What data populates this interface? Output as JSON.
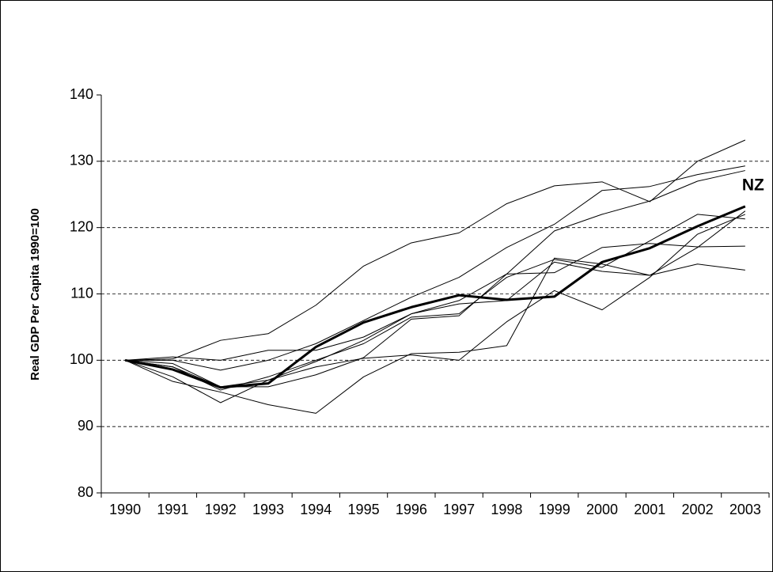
{
  "chart_data": {
    "type": "line",
    "y_label": "Real GDP Per Capita 1990=100",
    "categories": [
      "1990",
      "1991",
      "1992",
      "1993",
      "1994",
      "1995",
      "1996",
      "1997",
      "1998",
      "1999",
      "2000",
      "2001",
      "2002",
      "2003"
    ],
    "ylim": [
      80,
      140
    ],
    "yticks": [
      80,
      90,
      100,
      110,
      120,
      130,
      140
    ],
    "grid": true,
    "series": [
      {
        "color": "#000000",
        "line_width": 1,
        "values": [
          100,
          100.2,
          103,
          104,
          108.3,
          114.2,
          117.7,
          119.2,
          123.6,
          126.3,
          126.9,
          123.9,
          130,
          133.2
        ]
      },
      {
        "color": "#000000",
        "line_width": 1,
        "values": [
          100,
          100.5,
          100,
          101.5,
          101.5,
          103.5,
          107,
          109,
          113,
          119.5,
          122,
          124,
          127,
          128.6
        ]
      },
      {
        "color": "#000000",
        "line_width": 1,
        "values": [
          100,
          100,
          98.5,
          100,
          102.5,
          106,
          109.5,
          112.5,
          117,
          120.5,
          125.6,
          126.2,
          128,
          129.3
        ]
      },
      {
        "color": "#000000",
        "line_width": 1,
        "values": [
          100,
          99,
          95.5,
          97.5,
          100,
          102.5,
          106.5,
          107,
          112.5,
          115.2,
          114,
          118,
          122,
          121.3
        ]
      },
      {
        "color": "#000000",
        "line_width": 1,
        "values": [
          100,
          99.5,
          96,
          96,
          97.8,
          100.4,
          106.2,
          106.7,
          113,
          113.2,
          117,
          117.6,
          117.1,
          117.2
        ]
      },
      {
        "color": "#000000",
        "line_width": 1,
        "values": [
          100,
          97.5,
          93.6,
          97,
          99.8,
          103,
          107,
          108.5,
          109,
          114.8,
          113.4,
          112.8,
          114.5,
          113.6
        ]
      },
      {
        "color": "#000000",
        "line_width": 1,
        "values": [
          100,
          96.8,
          95.2,
          93.3,
          92,
          97.5,
          101,
          101.2,
          102.2,
          115.4,
          114.5,
          112.8,
          117,
          122.5
        ]
      },
      {
        "color": "#000000",
        "line_width": 1,
        "values": [
          100,
          99,
          96,
          97,
          99,
          100.3,
          100.8,
          100,
          105.8,
          110.5,
          107.6,
          112.5,
          119,
          122
        ]
      },
      {
        "name": "NZ",
        "color": "#000000",
        "line_width": 3,
        "values": [
          100,
          98.6,
          95.9,
          96.5,
          102,
          105.7,
          108,
          109.8,
          109.1,
          109.6,
          114.8,
          116.9,
          120.2,
          123.2
        ]
      }
    ]
  }
}
